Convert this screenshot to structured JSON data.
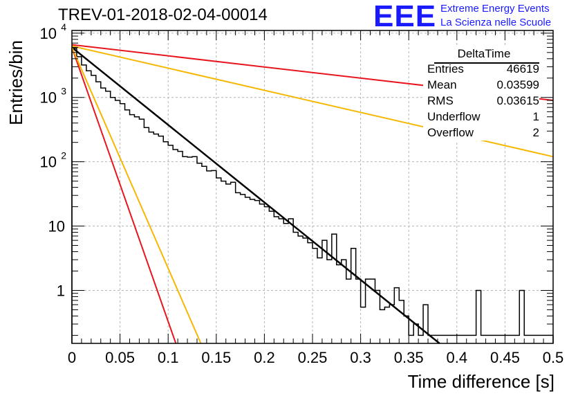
{
  "header": {
    "run_title": "TREV-01-2018-02-04-00014",
    "logo_text": "EEE",
    "logo_line1": "Extreme Energy Events",
    "logo_line2": "La Scienza nelle Scuole"
  },
  "stats_box": {
    "name": "DeltaTime",
    "rows": [
      {
        "label": "Entries",
        "value": "46619"
      },
      {
        "label": "Mean",
        "value": "0.03599"
      },
      {
        "label": "RMS",
        "value": "0.03615"
      },
      {
        "label": "Underflow",
        "value": "1"
      },
      {
        "label": "Overflow",
        "value": "2"
      }
    ]
  },
  "colors": {
    "fit": "#000000",
    "red": "#e8141e",
    "yellow": "#f5b700",
    "grid": "#b4b4b4",
    "logo": "#1a1aff"
  },
  "chart_data": {
    "type": "line",
    "title": "TREV-01-2018-02-04-00014",
    "xlabel": "Time difference [s]",
    "ylabel": "Entries/bin",
    "xlim": [
      0,
      0.5
    ],
    "ylim": [
      0.15,
      11000
    ],
    "log_y": true,
    "grid": true,
    "x_ticks": [
      "0",
      "0.05",
      "0.1",
      "0.15",
      "0.2",
      "0.25",
      "0.3",
      "0.35",
      "0.4",
      "0.45",
      "0.5"
    ],
    "y_ticks": [
      {
        "value": 1,
        "label": "1"
      },
      {
        "value": 10,
        "label": "10"
      },
      {
        "value": 100,
        "label": "10",
        "exp": "2"
      },
      {
        "value": 1000,
        "label": "10",
        "exp": "3"
      },
      {
        "value": 10000,
        "label": "10",
        "exp": "4"
      }
    ],
    "histogram": {
      "bin_width": 0.005,
      "values": [
        5800,
        4300,
        3200,
        2600,
        2200,
        1750,
        1400,
        1250,
        1000,
        900,
        800,
        640,
        540,
        500,
        460,
        340,
        290,
        270,
        250,
        205,
        180,
        155,
        145,
        120,
        118,
        120,
        95,
        85,
        72,
        73,
        56,
        50,
        45,
        48,
        33,
        31,
        28,
        26,
        25,
        22,
        20,
        17,
        14,
        13,
        11,
        13,
        8,
        7,
        6.5,
        5.5,
        4.5,
        3.2,
        6,
        3,
        7.5,
        2.5,
        3,
        1.5,
        4.5,
        1.5,
        0.55,
        1.5,
        1.5,
        1.0,
        0.5,
        0.55,
        0.6,
        1.1,
        0.7,
        0.4,
        0.2,
        0.3,
        0.2,
        0.6,
        0.2,
        0.2,
        0.2,
        0.2,
        0.2,
        0.2,
        0.2,
        0.2,
        0.2,
        0.2,
        1.0,
        0.2,
        0.2,
        0.2,
        0.2,
        0.2,
        0.2,
        0.2,
        0.2,
        1.0,
        0.2,
        0.2,
        0.2,
        0.2,
        0.2,
        0.2
      ]
    },
    "series": [
      {
        "color": "black",
        "points": [
          [
            0,
            6000
          ],
          [
            0.382,
            0.15
          ]
        ]
      },
      {
        "color": "red",
        "points": [
          [
            0,
            6600
          ],
          [
            0.5,
            900
          ]
        ]
      },
      {
        "color": "red",
        "points": [
          [
            0,
            6000
          ],
          [
            0.108,
            0.15
          ]
        ]
      },
      {
        "color": "yellow",
        "points": [
          [
            0,
            6300
          ],
          [
            0.5,
            120
          ]
        ]
      },
      {
        "color": "yellow",
        "points": [
          [
            0,
            6000
          ],
          [
            0.134,
            0.15
          ]
        ]
      }
    ]
  }
}
